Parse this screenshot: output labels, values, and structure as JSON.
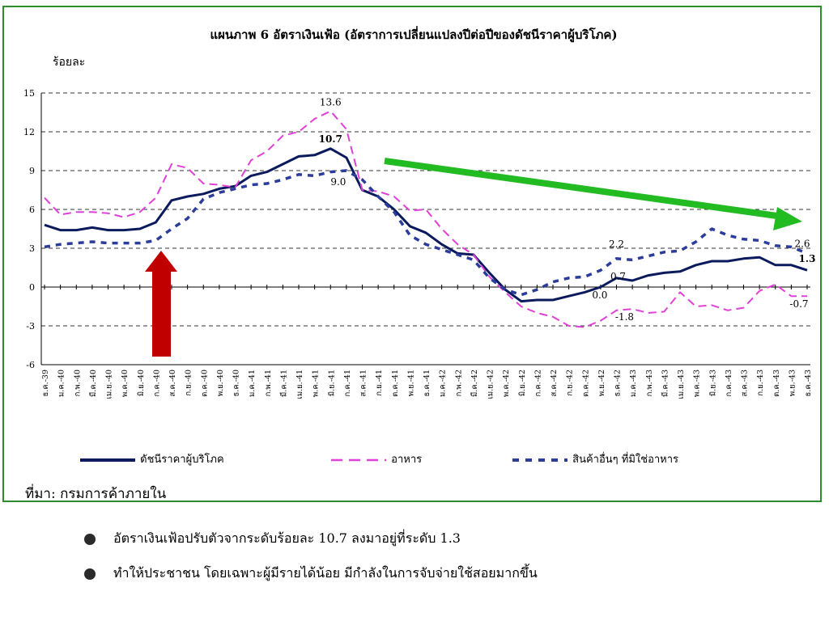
{
  "bullets": [
    "อัตราเงินเฟ้อปรับตัวจากระดับร้อยละ 10.7 ลงมาอยู่ที่ระดับ 1.3",
    "ทำให้ประชาชน โดยเฉพาะผู้มีรายได้น้อย มีกำลังในการจับจ่ายใช้สอยมากขึ้น"
  ],
  "colors": {
    "frame": "#2e8b2e",
    "cpi": "#0a1a5c",
    "food": "#e040d8",
    "nonfood": "#2c3c9a",
    "up_arrow": "#c00000",
    "down_arrow": "#22bb22"
  },
  "chart_data": {
    "type": "line",
    "title": "แผนภาพ 6 อัตราเงินเฟ้อ (อัตราการเปลี่ยนแปลงปีต่อปีของดัชนีราคาผู้บริโภค)",
    "ylabel": "ร้อยละ",
    "xlabel": "",
    "ylim": [
      -6,
      15
    ],
    "yticks": [
      15,
      12,
      9,
      6,
      3,
      0,
      -3,
      -6
    ],
    "grid": "horizontal dashed",
    "legend_position": "bottom",
    "source": "ที่มา: กรมการค้าภายใน",
    "categories": [
      "ธ.ค.-39",
      "ม.ค.-40",
      "ก.พ.-40",
      "มี.ค.-40",
      "เม.ย.-40",
      "พ.ค.-40",
      "มิ.ย.-40",
      "ก.ค.-40",
      "ส.ค.-40",
      "ก.ย.-40",
      "ต.ค.-40",
      "พ.ย.-40",
      "ธ.ค.-40",
      "ม.ค.-41",
      "ก.พ.-41",
      "มี.ค.-41",
      "เม.ย.-41",
      "พ.ค.-41",
      "มิ.ย.-41",
      "ก.ค.-41",
      "ส.ค.-41",
      "ก.ย.-41",
      "ต.ค.-41",
      "พ.ย.-41",
      "ธ.ค.-41",
      "ม.ค.-42",
      "ก.พ.-42",
      "มี.ค.-42",
      "เม.ย.-42",
      "พ.ค.-42",
      "มิ.ย.-42",
      "ก.ค.-42",
      "ส.ค.-42",
      "ก.ย.-42",
      "ต.ค.-42",
      "พ.ย.-42",
      "ธ.ค.-42",
      "ม.ค.-43",
      "ก.พ.-43",
      "มี.ค.-43",
      "เม.ย.-43",
      "พ.ค.-43",
      "มิ.ย.-43",
      "ก.ค.-43",
      "ส.ค.-43",
      "ก.ย.-43",
      "ต.ค.-43",
      "พ.ย.-43",
      "ธ.ค.-43"
    ],
    "series": [
      {
        "name": "ดัชนีราคาผู้บริโภค",
        "style": "solid",
        "values": [
          4.8,
          4.4,
          4.4,
          4.6,
          4.4,
          4.4,
          4.5,
          5.0,
          6.7,
          7.0,
          7.2,
          7.6,
          7.8,
          8.6,
          8.9,
          9.5,
          10.1,
          10.2,
          10.7,
          10.0,
          7.5,
          7.0,
          6.0,
          4.7,
          4.2,
          3.3,
          2.6,
          2.5,
          1.1,
          -0.2,
          -1.1,
          -1.0,
          -1.0,
          -0.7,
          -0.4,
          0.0,
          0.7,
          0.5,
          0.9,
          1.1,
          1.2,
          1.7,
          2.0,
          2.0,
          2.2,
          2.3,
          1.7,
          1.7,
          1.3
        ]
      },
      {
        "name": "อาหาร",
        "style": "dashed",
        "values": [
          6.9,
          5.6,
          5.8,
          5.8,
          5.7,
          5.4,
          5.8,
          6.9,
          9.5,
          9.2,
          8.0,
          7.9,
          7.7,
          9.8,
          10.5,
          11.7,
          12.0,
          13.0,
          13.6,
          12.2,
          7.5,
          7.4,
          7.0,
          5.9,
          6.0,
          4.5,
          3.3,
          2.5,
          0.8,
          -0.4,
          -1.5,
          -2.0,
          -2.3,
          -3.0,
          -3.1,
          -2.6,
          -1.8,
          -1.7,
          -2.0,
          -1.9,
          -0.4,
          -1.5,
          -1.4,
          -1.8,
          -1.6,
          -0.3,
          0.2,
          -0.7,
          -0.7
        ]
      },
      {
        "name": "สินค้าอื่นๆ ที่มิใช่อาหาร",
        "style": "dotted",
        "values": [
          3.1,
          3.3,
          3.4,
          3.5,
          3.4,
          3.4,
          3.4,
          3.6,
          4.5,
          5.3,
          6.8,
          7.3,
          7.6,
          7.9,
          8.0,
          8.3,
          8.7,
          8.6,
          8.9,
          9.0,
          8.3,
          7.0,
          5.8,
          4.0,
          3.3,
          2.9,
          2.5,
          2.1,
          0.7,
          -0.2,
          -0.6,
          -0.2,
          0.4,
          0.7,
          0.8,
          1.3,
          2.2,
          2.1,
          2.4,
          2.7,
          2.8,
          3.5,
          4.5,
          4.0,
          3.7,
          3.6,
          3.2,
          3.1,
          2.6
        ]
      }
    ],
    "annotations": [
      {
        "text": "13.6",
        "series": 1,
        "index": 18
      },
      {
        "text": "10.7",
        "series": 0,
        "index": 18
      },
      {
        "text": "9.0",
        "series": 2,
        "index": 19
      },
      {
        "text": "2.2",
        "series": 2,
        "index": 36
      },
      {
        "text": "0.7",
        "series": 0,
        "index": 36
      },
      {
        "text": "0.0",
        "series": 0,
        "index": 35
      },
      {
        "text": "-1.8",
        "series": 1,
        "index": 36
      },
      {
        "text": "2.6",
        "series": 2,
        "index": 48
      },
      {
        "text": "1.3",
        "series": 0,
        "index": 48
      },
      {
        "text": "-0.7",
        "series": 1,
        "index": 48
      }
    ]
  }
}
